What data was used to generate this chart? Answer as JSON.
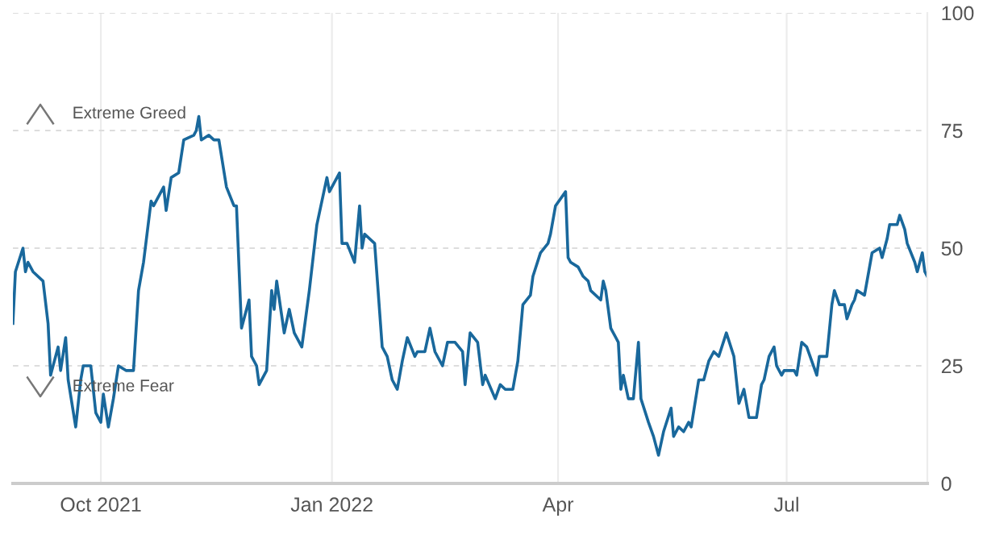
{
  "chart_data": {
    "type": "line",
    "x": [
      "2021-08-27",
      "2021-08-28",
      "2021-08-31",
      "2021-09-01",
      "2021-09-02",
      "2021-09-04",
      "2021-09-08",
      "2021-09-10",
      "2021-09-11",
      "2021-09-14",
      "2021-09-15",
      "2021-09-17",
      "2021-09-18",
      "2021-09-21",
      "2021-09-23",
      "2021-09-24",
      "2021-09-27",
      "2021-09-29",
      "2021-10-01",
      "2021-10-02",
      "2021-10-04",
      "2021-10-06",
      "2021-10-08",
      "2021-10-11",
      "2021-10-14",
      "2021-10-16",
      "2021-10-18",
      "2021-10-21",
      "2021-10-22",
      "2021-10-26",
      "2021-10-27",
      "2021-10-29",
      "2021-11-01",
      "2021-11-03",
      "2021-11-07",
      "2021-11-08",
      "2021-11-09",
      "2021-11-10",
      "2021-11-13",
      "2021-11-15",
      "2021-11-17",
      "2021-11-20",
      "2021-11-23",
      "2021-11-24",
      "2021-11-26",
      "2021-11-29",
      "2021-11-30",
      "2021-12-02",
      "2021-12-03",
      "2021-12-06",
      "2021-12-08",
      "2021-12-09",
      "2021-12-10",
      "2021-12-13",
      "2021-12-15",
      "2021-12-17",
      "2021-12-20",
      "2021-12-23",
      "2021-12-26",
      "2021-12-28",
      "2021-12-30",
      "2021-12-31",
      "2022-01-04",
      "2022-01-05",
      "2022-01-07",
      "2022-01-10",
      "2022-01-12",
      "2022-01-13",
      "2022-01-14",
      "2022-01-18",
      "2022-01-21",
      "2022-01-23",
      "2022-01-25",
      "2022-01-27",
      "2022-01-29",
      "2022-01-31",
      "2022-02-03",
      "2022-02-04",
      "2022-02-07",
      "2022-02-09",
      "2022-02-11",
      "2022-02-14",
      "2022-02-16",
      "2022-02-19",
      "2022-02-22",
      "2022-02-23",
      "2022-02-25",
      "2022-02-28",
      "2022-03-02",
      "2022-03-03",
      "2022-03-07",
      "2022-03-09",
      "2022-03-11",
      "2022-03-14",
      "2022-03-16",
      "2022-03-18",
      "2022-03-21",
      "2022-03-22",
      "2022-03-25",
      "2022-03-28",
      "2022-03-29",
      "2022-03-31",
      "2022-04-04",
      "2022-04-05",
      "2022-04-06",
      "2022-04-09",
      "2022-04-11",
      "2022-04-13",
      "2022-04-14",
      "2022-04-18",
      "2022-04-19",
      "2022-04-20",
      "2022-04-22",
      "2022-04-25",
      "2022-04-26",
      "2022-04-27",
      "2022-04-29",
      "2022-05-01",
      "2022-05-03",
      "2022-05-04",
      "2022-05-07",
      "2022-05-09",
      "2022-05-11",
      "2022-05-13",
      "2022-05-16",
      "2022-05-17",
      "2022-05-19",
      "2022-05-21",
      "2022-05-23",
      "2022-05-24",
      "2022-05-27",
      "2022-05-29",
      "2022-05-31",
      "2022-06-02",
      "2022-06-04",
      "2022-06-07",
      "2022-06-10",
      "2022-06-12",
      "2022-06-14",
      "2022-06-16",
      "2022-06-19",
      "2022-06-21",
      "2022-06-22",
      "2022-06-24",
      "2022-06-26",
      "2022-06-27",
      "2022-06-29",
      "2022-06-30",
      "2022-07-04",
      "2022-07-05",
      "2022-07-07",
      "2022-07-09",
      "2022-07-11",
      "2022-07-13",
      "2022-07-14",
      "2022-07-17",
      "2022-07-19",
      "2022-07-20",
      "2022-07-22",
      "2022-07-24",
      "2022-07-25",
      "2022-07-27",
      "2022-07-28",
      "2022-07-29",
      "2022-08-01",
      "2022-08-04",
      "2022-08-07",
      "2022-08-08",
      "2022-08-10",
      "2022-08-11",
      "2022-08-14",
      "2022-08-15",
      "2022-08-17",
      "2022-08-18",
      "2022-08-21",
      "2022-08-22",
      "2022-08-24",
      "2022-08-25",
      "2022-08-26"
    ],
    "series": [
      {
        "color": "#19689c",
        "values": [
          34,
          45,
          50,
          45,
          47,
          45,
          43,
          34,
          23,
          29,
          24,
          31,
          22,
          12,
          22,
          25,
          25,
          15,
          13,
          19,
          12,
          18,
          25,
          24,
          24,
          41,
          47,
          60,
          59,
          63,
          58,
          65,
          66,
          73,
          74,
          75,
          78,
          73,
          74,
          73,
          73,
          63,
          59,
          59,
          33,
          39,
          27,
          25,
          21,
          24,
          41,
          37,
          43,
          32,
          37,
          32,
          29,
          41,
          55,
          60,
          65,
          62,
          66,
          51,
          51,
          47,
          59,
          50,
          53,
          51,
          29,
          27,
          22,
          20,
          26,
          31,
          27,
          28,
          28,
          33,
          28,
          25,
          30,
          30,
          28,
          21,
          32,
          30,
          21,
          23,
          18,
          21,
          20,
          20,
          26,
          38,
          40,
          44,
          49,
          51,
          53,
          59,
          62,
          48,
          47,
          46,
          44,
          43,
          41,
          39,
          43,
          41,
          33,
          30,
          20,
          23,
          18,
          18,
          30,
          18,
          13,
          10,
          6,
          11,
          16,
          10,
          12,
          11,
          13,
          12,
          22,
          22,
          26,
          28,
          27,
          32,
          27,
          17,
          20,
          14,
          14,
          21,
          22,
          27,
          29,
          25,
          23,
          24,
          24,
          23,
          30,
          29,
          26,
          23,
          27,
          27,
          38,
          41,
          38,
          38,
          35,
          38,
          39,
          41,
          40,
          49,
          50,
          48,
          52,
          55,
          55,
          57,
          54,
          51,
          47,
          45,
          49,
          45,
          44
        ]
      }
    ],
    "xlim": [
      "2021-08-27",
      "2022-08-26"
    ],
    "xticks": [
      {
        "value": "2021-10-01",
        "label": "Oct 2021"
      },
      {
        "value": "2022-01-01",
        "label": "Jan 2022"
      },
      {
        "value": "2022-04-01",
        "label": "Apr"
      },
      {
        "value": "2022-07-01",
        "label": "Jul"
      }
    ],
    "ylim": [
      0,
      100
    ],
    "yticks": [
      0,
      25,
      50,
      75,
      100
    ],
    "grid": true,
    "line_style": "solid",
    "annotations": [
      "Extreme Greed",
      "Extreme Fear"
    ]
  }
}
